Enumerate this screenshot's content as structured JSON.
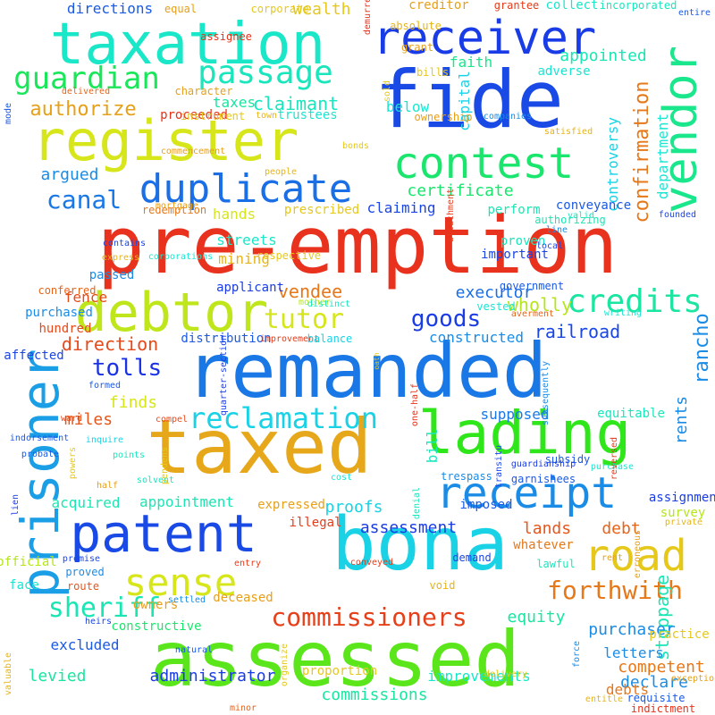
{
  "cloud": {
    "words": [
      {
        "text": "pre-emption",
        "color": "#e8321e"
      },
      {
        "text": "remanded",
        "color": "#1a78e6"
      },
      {
        "text": "taxed",
        "color": "#e6a81a"
      },
      {
        "text": "bona",
        "color": "#1ad2e6"
      },
      {
        "text": "assessed",
        "color": "#5ae61a"
      },
      {
        "text": "fide",
        "color": "#1a4ae6"
      },
      {
        "text": "taxation",
        "color": "#1ae6c8"
      },
      {
        "text": "register",
        "color": "#d6e61a"
      },
      {
        "text": "prisoner",
        "color": "#1a9ee6"
      },
      {
        "text": "receiver",
        "color": "#1a3ce6"
      },
      {
        "text": "vendor",
        "color": "#1ae68c"
      },
      {
        "text": "contest",
        "color": "#1ae66e"
      },
      {
        "text": "lading",
        "color": "#2ee61a"
      },
      {
        "text": "debtor",
        "color": "#bee61a"
      },
      {
        "text": "patent",
        "color": "#1a4ae6"
      },
      {
        "text": "receipt",
        "color": "#1a8ce6"
      },
      {
        "text": "road",
        "color": "#e6c81a"
      },
      {
        "text": "duplicate",
        "color": "#1a6ee6"
      },
      {
        "text": "passage",
        "color": "#1ae6be"
      },
      {
        "text": "sense",
        "color": "#d6e61a"
      },
      {
        "text": "guardian",
        "color": "#1ae65a"
      },
      {
        "text": "credits",
        "color": "#1ae6a0"
      },
      {
        "text": "reclamation",
        "color": "#1ad2e6"
      },
      {
        "text": "commissioners",
        "color": "#e6401a"
      },
      {
        "text": "forthwith",
        "color": "#e6781a"
      },
      {
        "text": "sheriff",
        "color": "#1ae6b4"
      },
      {
        "text": "tutor",
        "color": "#d6e61a"
      },
      {
        "text": "goods",
        "color": "#1a3ce6"
      },
      {
        "text": "tolls",
        "color": "#1a32e6"
      },
      {
        "text": "canal",
        "color": "#1a78e6"
      },
      {
        "text": "authorize",
        "color": "#e6a01a"
      },
      {
        "text": "confirmation",
        "color": "#e6781a"
      },
      {
        "text": "department",
        "color": "#1ae6d2"
      },
      {
        "text": "controversy",
        "color": "#1ad2e6"
      },
      {
        "text": "capital",
        "color": "#1ad2e6"
      },
      {
        "text": "rancho",
        "color": "#1a8ce6"
      },
      {
        "text": "stoppage",
        "color": "#1ae6b4"
      },
      {
        "text": "rents",
        "color": "#1a8ce6"
      },
      {
        "text": "claimant",
        "color": "#1ae6be"
      },
      {
        "text": "appointed",
        "color": "#1ae6b4"
      },
      {
        "text": "certificate",
        "color": "#1ae66e"
      },
      {
        "text": "argued",
        "color": "#1a8ce6"
      },
      {
        "text": "executor",
        "color": "#1a6ee6"
      },
      {
        "text": "wholly",
        "color": "#b4e61a"
      },
      {
        "text": "railroad",
        "color": "#1a46e6"
      },
      {
        "text": "direction",
        "color": "#e64a1a"
      },
      {
        "text": "vendee",
        "color": "#e6781a"
      },
      {
        "text": "streets",
        "color": "#1ae6c8"
      },
      {
        "text": "mining",
        "color": "#e6b41a"
      },
      {
        "text": "hands",
        "color": "#d6e61a"
      },
      {
        "text": "taxes",
        "color": "#1ae6a0"
      },
      {
        "text": "below",
        "color": "#1ae6d2"
      },
      {
        "text": "trustees",
        "color": "#1ae6d2"
      },
      {
        "text": "proceeded",
        "color": "#e6321a"
      },
      {
        "text": "directions",
        "color": "#1a5ae6"
      },
      {
        "text": "wealth",
        "color": "#e6c81a"
      },
      {
        "text": "creditor",
        "color": "#e6a01a"
      },
      {
        "text": "collect",
        "color": "#1ae6c8"
      },
      {
        "text": "faith",
        "color": "#1ae68c"
      },
      {
        "text": "adverse",
        "color": "#1ae6d2"
      },
      {
        "text": "prescribed",
        "color": "#e6c81a"
      },
      {
        "text": "claiming",
        "color": "#1a46e6"
      },
      {
        "text": "perform",
        "color": "#1ae6b4"
      },
      {
        "text": "conveyance",
        "color": "#1a5ae6"
      },
      {
        "text": "proven",
        "color": "#1ae6be"
      },
      {
        "text": "important",
        "color": "#1a46e6"
      },
      {
        "text": "fence",
        "color": "#e64a1a"
      },
      {
        "text": "applicant",
        "color": "#1a3ce6"
      },
      {
        "text": "passed",
        "color": "#1a8ce6"
      },
      {
        "text": "purchased",
        "color": "#1a8ce6"
      },
      {
        "text": "hundred",
        "color": "#e64a1a"
      },
      {
        "text": "affected",
        "color": "#1a46e6"
      },
      {
        "text": "distribution",
        "color": "#1a5ae6"
      },
      {
        "text": "constructed",
        "color": "#1a8ce6"
      },
      {
        "text": "government",
        "color": "#1a5ae6"
      },
      {
        "text": "vested",
        "color": "#1ae6d2"
      },
      {
        "text": "supposed",
        "color": "#1a78e6"
      },
      {
        "text": "equitable",
        "color": "#1ae6be"
      },
      {
        "text": "finds",
        "color": "#d6e61a"
      },
      {
        "text": "miles",
        "color": "#e6561a"
      },
      {
        "text": "bill",
        "color": "#1ae6be"
      },
      {
        "text": "proofs",
        "color": "#1ad2e6"
      },
      {
        "text": "assessment",
        "color": "#1a3ce6"
      },
      {
        "text": "imposed",
        "color": "#1a5ae6"
      },
      {
        "text": "lands",
        "color": "#e6561a"
      },
      {
        "text": "debt",
        "color": "#e6641a"
      },
      {
        "text": "survey",
        "color": "#b4e61a"
      },
      {
        "text": "acquired",
        "color": "#1ae6b4"
      },
      {
        "text": "appointment",
        "color": "#1ae6b4"
      },
      {
        "text": "expressed",
        "color": "#e6a01a"
      },
      {
        "text": "illegal",
        "color": "#e63c1a"
      },
      {
        "text": "whatever",
        "color": "#e6781a"
      },
      {
        "text": "equity",
        "color": "#1ae6a0"
      },
      {
        "text": "purchaser",
        "color": "#1a8ce6"
      },
      {
        "text": "competent",
        "color": "#e6781a"
      },
      {
        "text": "letters",
        "color": "#1a8ce6"
      },
      {
        "text": "declare",
        "color": "#1a8ce6"
      },
      {
        "text": "excluded",
        "color": "#1a5ae6"
      },
      {
        "text": "constructive",
        "color": "#1ae66e"
      },
      {
        "text": "levied",
        "color": "#1ae6a0"
      },
      {
        "text": "administrator",
        "color": "#1a3ce6"
      },
      {
        "text": "commissions",
        "color": "#1ae6a0"
      },
      {
        "text": "improvements",
        "color": "#1ae6c8"
      },
      {
        "text": "debts",
        "color": "#e6781a"
      },
      {
        "text": "proportion",
        "color": "#e6c81a"
      },
      {
        "text": "practice",
        "color": "#e6c81a"
      },
      {
        "text": "lawful",
        "color": "#1ae6be"
      },
      {
        "text": "deceased",
        "color": "#e6a01a"
      },
      {
        "text": "owners",
        "color": "#e6a01a"
      },
      {
        "text": "official",
        "color": "#b4e61a"
      },
      {
        "text": "face",
        "color": "#1ae6d2"
      },
      {
        "text": "proved",
        "color": "#1a8ce6"
      },
      {
        "text": "route",
        "color": "#e6561a"
      },
      {
        "text": "void",
        "color": "#e6b41a"
      },
      {
        "text": "demand",
        "color": "#1a46e6"
      },
      {
        "text": "requisite",
        "color": "#1a5ae6"
      },
      {
        "text": "indictment",
        "color": "#e6321a"
      },
      {
        "text": "assignment",
        "color": "#1a3ce6"
      },
      {
        "text": "garnishees",
        "color": "#1a5ae6"
      },
      {
        "text": "trespass",
        "color": "#1a8ce6"
      },
      {
        "text": "subsidy",
        "color": "#1a5ae6"
      },
      {
        "text": "redemption",
        "color": "#e6781a"
      },
      {
        "text": "authorizing",
        "color": "#1ae6b4"
      },
      {
        "text": "grant",
        "color": "#e6a01a"
      },
      {
        "text": "bills",
        "color": "#e6c81a"
      },
      {
        "text": "ownership",
        "color": "#e6a01a"
      },
      {
        "text": "absolute",
        "color": "#e6b41a"
      },
      {
        "text": "equal",
        "color": "#e6a01a"
      },
      {
        "text": "corporate",
        "color": "#e6c81a"
      },
      {
        "text": "incorporated",
        "color": "#1ae6be"
      },
      {
        "text": "grantee",
        "color": "#e63c1a"
      },
      {
        "text": "assignee",
        "color": "#e6321a"
      },
      {
        "text": "character",
        "color": "#e6a01a"
      },
      {
        "text": "instrument",
        "color": "#e6c81a"
      },
      {
        "text": "delivered",
        "color": "#e6641a"
      },
      {
        "text": "town",
        "color": "#e6b41a"
      },
      {
        "text": "demurrer",
        "color": "#e6321a"
      },
      {
        "text": "sold",
        "color": "#e6c81a"
      },
      {
        "text": "companies",
        "color": "#1a8ce6"
      },
      {
        "text": "satisfied",
        "color": "#e6b41a"
      },
      {
        "text": "people",
        "color": "#e6b41a"
      },
      {
        "text": "bonds",
        "color": "#e6c81a"
      },
      {
        "text": "commencement",
        "color": "#e6a01a"
      },
      {
        "text": "mortgage",
        "color": "#e6a01a"
      },
      {
        "text": "valid",
        "color": "#1ae6be"
      },
      {
        "text": "founded",
        "color": "#1a46e6"
      },
      {
        "text": "contains",
        "color": "#1a46e6"
      },
      {
        "text": "express",
        "color": "#e6b41a"
      },
      {
        "text": "corporations",
        "color": "#1ae6d2"
      },
      {
        "text": "respective",
        "color": "#e6c81a"
      },
      {
        "text": "mother",
        "color": "#b4e61a"
      },
      {
        "text": "distinct",
        "color": "#1ae6be"
      },
      {
        "text": "conferred",
        "color": "#e6641a"
      },
      {
        "text": "improvement",
        "color": "#e63c1a"
      },
      {
        "text": "balance",
        "color": "#1ad2e6"
      },
      {
        "text": "averment",
        "color": "#e6641a"
      },
      {
        "text": "writing",
        "color": "#1ae6d2"
      },
      {
        "text": "formed",
        "color": "#1a5ae6"
      },
      {
        "text": "quarter-section",
        "color": "#1a3ce6"
      },
      {
        "text": "ward",
        "color": "#e64a1a"
      },
      {
        "text": "indorsement",
        "color": "#1a5ae6"
      },
      {
        "text": "compel",
        "color": "#e64a1a"
      },
      {
        "text": "probate",
        "color": "#1a5ae6"
      },
      {
        "text": "inquire",
        "color": "#1ad2e6"
      },
      {
        "text": "points",
        "color": "#1ae6be"
      },
      {
        "text": "lien",
        "color": "#1a3ce6"
      },
      {
        "text": "half",
        "color": "#e6a01a"
      },
      {
        "text": "solvent",
        "color": "#1ae6be"
      },
      {
        "text": "cost",
        "color": "#1ae6d2"
      },
      {
        "text": "guardianship",
        "color": "#1a3ce6"
      },
      {
        "text": "purchase",
        "color": "#1ae6d2"
      },
      {
        "text": "promise",
        "color": "#1a46e6"
      },
      {
        "text": "heirs",
        "color": "#1a46e6"
      },
      {
        "text": "natural",
        "color": "#1a5ae6"
      },
      {
        "text": "settled",
        "color": "#1a8ce6"
      },
      {
        "text": "entry",
        "color": "#e63c1a"
      },
      {
        "text": "conveyed",
        "color": "#e63c1a"
      },
      {
        "text": "private",
        "color": "#e6b41a"
      },
      {
        "text": "delivery",
        "color": "#e6c81a"
      },
      {
        "text": "minor",
        "color": "#e6641a"
      },
      {
        "text": "rent",
        "color": "#e6a01a"
      },
      {
        "text": "exceptions",
        "color": "#e6a01a"
      },
      {
        "text": "entitle",
        "color": "#e6b41a"
      },
      {
        "text": "pendens",
        "color": "#e6c81a"
      },
      {
        "text": "powers",
        "color": "#e6c81a"
      },
      {
        "text": "denial",
        "color": "#1ae6be"
      },
      {
        "text": "transitu",
        "color": "#1a46e6"
      },
      {
        "text": "one-half",
        "color": "#e6321a"
      },
      {
        "text": "attachment",
        "color": "#e63c1a"
      },
      {
        "text": "subsequently",
        "color": "#1a8ce6"
      },
      {
        "text": "reversed",
        "color": "#e63c1a"
      },
      {
        "text": "erroneous",
        "color": "#e6a01a"
      },
      {
        "text": "force",
        "color": "#1a8ce6"
      },
      {
        "text": "organize",
        "color": "#e6c81a"
      },
      {
        "text": "valuable",
        "color": "#e6b41a"
      },
      {
        "text": "mode",
        "color": "#1a5ae6"
      },
      {
        "text": "entire",
        "color": "#1a5ae6"
      },
      {
        "text": "oath",
        "color": "#e6c81a"
      },
      {
        "text": "local",
        "color": "#1a46e6"
      },
      {
        "text": "line",
        "color": "#1a8ce6"
      }
    ]
  }
}
